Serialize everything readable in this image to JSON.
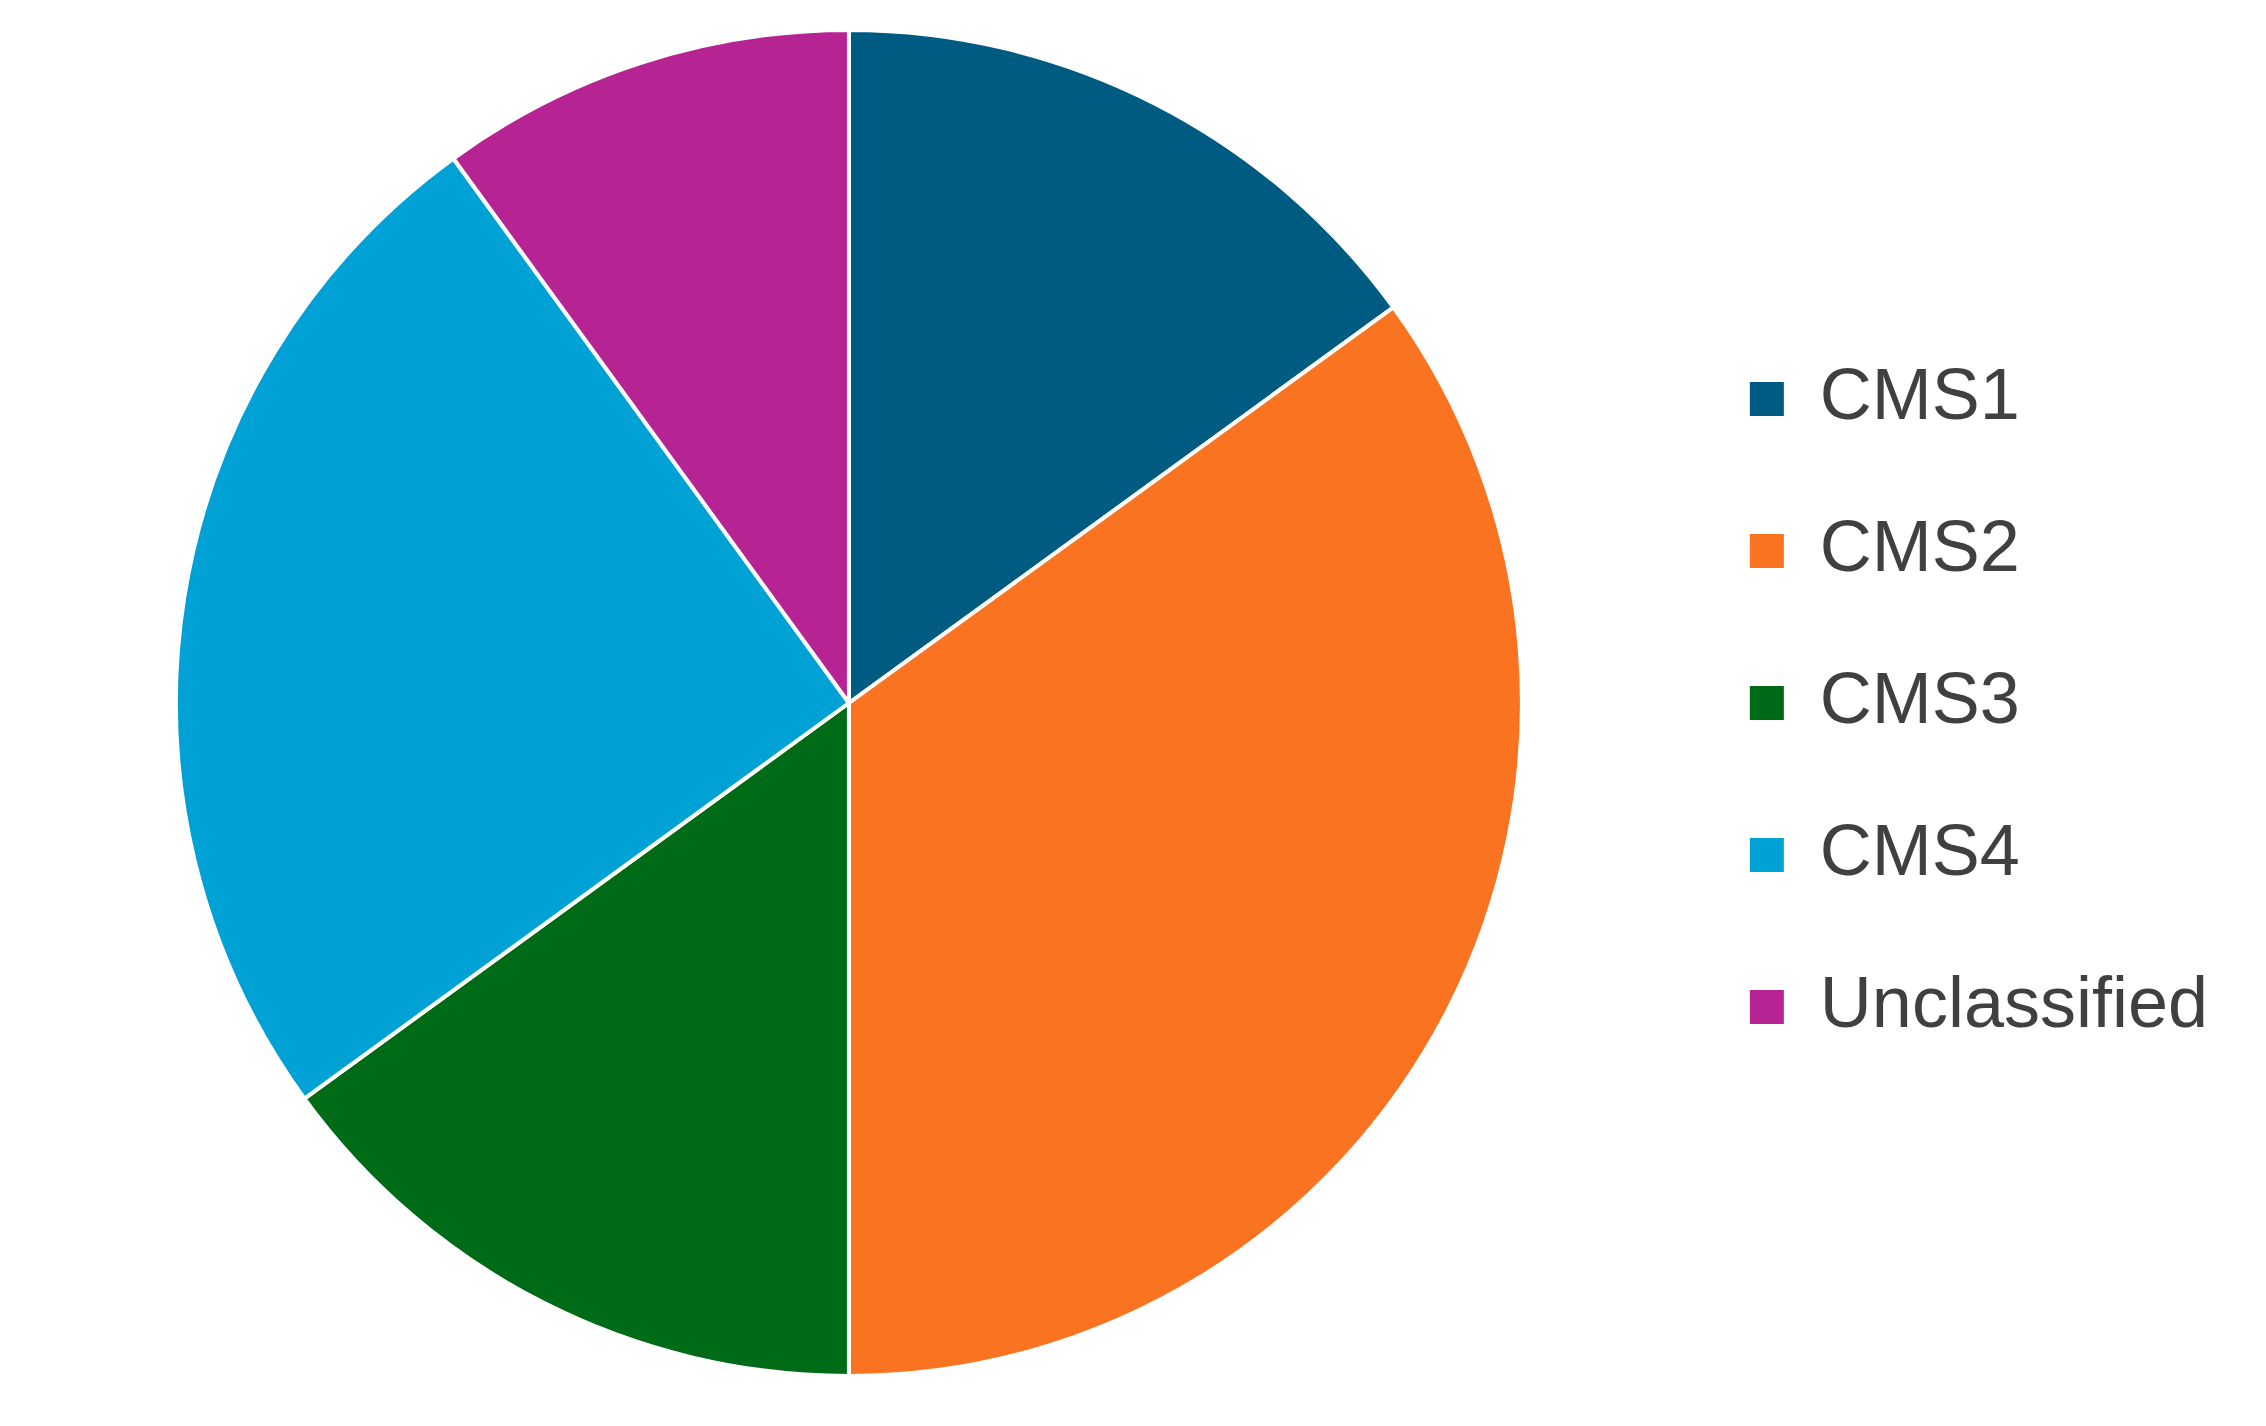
{
  "chart_data": {
    "type": "pie",
    "categories": [
      "CMS1",
      "CMS2",
      "CMS3",
      "CMS4",
      "Unclassified"
    ],
    "values": [
      15,
      35,
      15,
      25,
      10
    ],
    "colors": [
      "#005b82",
      "#f97321",
      "#006b16",
      "#00a2d6",
      "#b62393"
    ],
    "legend": "right"
  }
}
